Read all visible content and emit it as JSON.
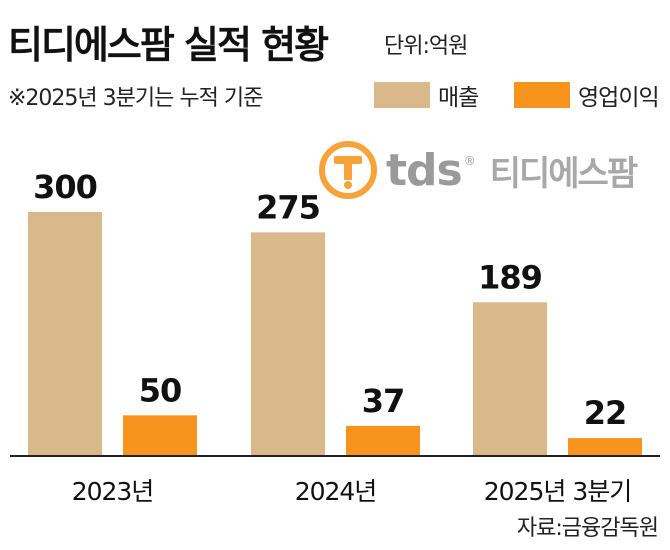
{
  "title": "티디에스팜 실적 현황",
  "unit": "단위:억원",
  "note": "※2025년 3분기는 누적 기준",
  "logo": {
    "text": "tds",
    "reg": "®",
    "name": "티디에스팜"
  },
  "source": "자료:금융감독원",
  "colors": {
    "revenue": "#d9b98b",
    "operating_profit": "#f7941d",
    "axis": "#222222"
  },
  "chart_data": {
    "type": "bar",
    "categories": [
      "2023년",
      "2024년",
      "2025년 3분기"
    ],
    "series": [
      {
        "name": "매출",
        "values": [
          300,
          275,
          189
        ]
      },
      {
        "name": "영업이익",
        "values": [
          50,
          37,
          22
        ]
      }
    ],
    "ylim": [
      0,
      300
    ],
    "grid": false,
    "legend": "top-right"
  }
}
